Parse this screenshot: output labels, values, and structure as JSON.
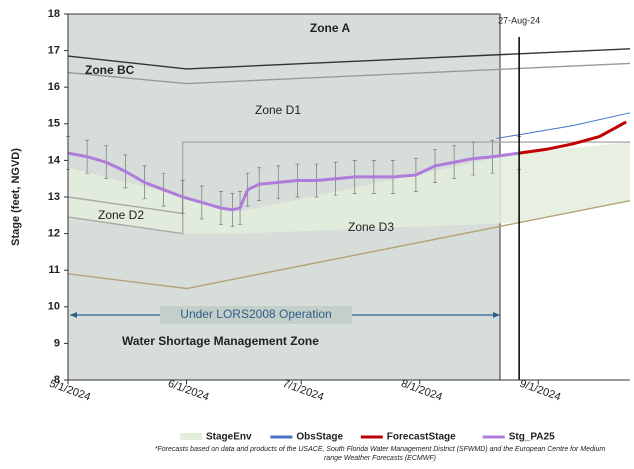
{
  "chart_data": {
    "type": "line",
    "ylabel": "Stage (feet, NGVD)",
    "xlim": [
      "5/1/2024",
      "9/25/2024"
    ],
    "xticks": [
      "5/1/2024",
      "6/1/2024",
      "7/1/2024",
      "8/1/2024",
      "9/1/2024"
    ],
    "ylim": [
      8,
      18
    ],
    "yticks": [
      8,
      9,
      10,
      11,
      12,
      13,
      14,
      15,
      16,
      17,
      18
    ],
    "grid": false,
    "annotations": [
      "Zone A",
      "Zone BC",
      "Zone D1",
      "Zone D2",
      "Zone D3",
      "Under LORS2008 Operation",
      "Water Shortage Management Zone"
    ],
    "vline": {
      "x": {
        "value": "8/27/2024",
        "label": "27-Aug-24"
      },
      "color": "#000000"
    },
    "footnote": [
      "*Forecasts based on data and products of the USACE, South Florida Water Management District (SFWMD) and the European Centre for Medium",
      "range Weather Forecasts (ECMWF)"
    ],
    "lines": [
      {
        "color": "#333333",
        "x": [
          "5/1/2024",
          "6/1/2024",
          "9/25/2024"
        ],
        "values": [
          16.85,
          16.5,
          17.05
        ]
      },
      {
        "color": "#999999",
        "x": [
          "5/1/2024",
          "6/1/2024",
          "9/25/2024"
        ],
        "values": [
          16.4,
          16.1,
          16.65
        ]
      },
      {
        "color": "#aaaaaa",
        "x": [
          "5/1/2024",
          "5/31/2024",
          "5/31/2024",
          "9/25/2024"
        ],
        "values": [
          13.0,
          12.55,
          14.5,
          14.5
        ]
      },
      {
        "color": "#aaaaaa",
        "x": [
          "5/1/2024",
          "5/31/2024",
          "5/31/2024"
        ],
        "values": [
          12.45,
          12.0,
          12.55
        ]
      },
      {
        "color": "#b5a27a",
        "x": [
          "5/1/2024",
          "6/1/2024",
          "9/25/2024"
        ],
        "values": [
          10.9,
          10.5,
          12.9
        ]
      }
    ],
    "series": [
      {
        "name": "StageEnv",
        "color": "#e4eedc",
        "x": [
          "5/1/2024",
          "6/1/2024",
          "6/15/2024",
          "8/27/2024",
          "9/25/2024"
        ],
        "values": [
          13.8,
          13.0,
          12.6,
          14.2,
          14.5
        ],
        "lower": [
          12.4,
          12.0,
          12.0,
          12.3,
          12.9
        ]
      },
      {
        "name": "ObsStage",
        "color": "#4472c4",
        "x": [
          "8/21/2024",
          "8/27/2024",
          "9/10/2024",
          "9/25/2024"
        ],
        "values": [
          14.6,
          14.7,
          14.95,
          15.3
        ]
      },
      {
        "name": "ForecastStage",
        "color": "#c00000",
        "x": [
          "8/27/2024",
          "9/3/2024",
          "9/10/2024",
          "9/17/2024",
          "9/24/2024"
        ],
        "values": [
          14.2,
          14.3,
          14.45,
          14.65,
          15.05
        ]
      },
      {
        "name": "Stg_PA25",
        "color": "#b07cdc",
        "x": [
          "5/1/2024",
          "5/6/2024",
          "5/11/2024",
          "5/16/2024",
          "5/21/2024",
          "5/26/2024",
          "5/31/2024",
          "6/5/2024",
          "6/10/2024",
          "6/13/2024",
          "6/15/2024",
          "6/17/2024",
          "6/20/2024",
          "6/25/2024",
          "6/30/2024",
          "7/5/2024",
          "7/10/2024",
          "7/15/2024",
          "7/20/2024",
          "7/25/2024",
          "7/31/2024",
          "8/5/2024",
          "8/10/2024",
          "8/15/2024",
          "8/20/2024",
          "8/27/2024"
        ],
        "values": [
          14.2,
          14.1,
          13.95,
          13.7,
          13.4,
          13.2,
          13.0,
          12.85,
          12.7,
          12.65,
          12.7,
          13.2,
          13.35,
          13.4,
          13.45,
          13.45,
          13.5,
          13.55,
          13.55,
          13.55,
          13.6,
          13.85,
          13.95,
          14.05,
          14.1,
          14.2
        ],
        "errors": [
          0.45,
          0.45,
          0.45,
          0.45,
          0.45,
          0.45,
          0.45,
          0.45,
          0.45,
          0.45,
          0.45,
          0.45,
          0.45,
          0.45,
          0.45,
          0.45,
          0.45,
          0.45,
          0.45,
          0.45,
          0.45,
          0.45,
          0.45,
          0.45,
          0.45,
          0.45
        ]
      }
    ]
  }
}
